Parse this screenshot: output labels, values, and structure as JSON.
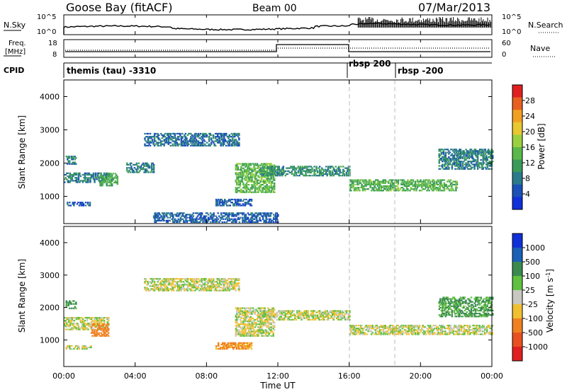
{
  "header": {
    "station": "Goose Bay (fitACF)",
    "beam": "Beam 00",
    "date": "07/Mar/2013"
  },
  "noise_panel": {
    "left_label": "N.Sky",
    "right_label": "N.Search",
    "left_ticks": [
      "10^5",
      "10^0"
    ],
    "right_ticks": [
      "10^5",
      "10^0"
    ]
  },
  "freq_panel": {
    "left_label_1": "Freq.",
    "left_label_2": "[MHz]",
    "right_label": "Nave",
    "left_ticks": [
      "18",
      "8"
    ],
    "right_ticks": [
      "60",
      "0"
    ]
  },
  "cpid_panel": {
    "label": "CPID",
    "modes": [
      {
        "name": "themis (tau) -3310",
        "start_hour": 0
      },
      {
        "name": "rbsp 200",
        "start_hour": 16
      },
      {
        "name": "rbsp -200",
        "start_hour": 18.7
      }
    ]
  },
  "x_axis": {
    "label": "Time UT",
    "ticks": [
      "00:00",
      "04:00",
      "08:00",
      "12:00",
      "16:00",
      "20:00",
      "00:00"
    ]
  },
  "colors": {
    "ground_scatter": "#c8c8c0",
    "power_scale": [
      "#1030d8",
      "#1a50b8",
      "#2a7a8a",
      "#3a9a5a",
      "#5ab84a",
      "#9ad040",
      "#e8c830",
      "#f0a020",
      "#e86020",
      "#e02020"
    ],
    "velocity_scale": [
      "#1030d8",
      "#1a60b8",
      "#3a8a50",
      "#60c040",
      "#c8c8c0",
      "#f0c030",
      "#f08020",
      "#e85020",
      "#e02020"
    ]
  },
  "chart_data": [
    {
      "type": "heatmap",
      "title": "Power",
      "xlabel": "",
      "ylabel": "Slant Range [km]",
      "x_range_hours": [
        0,
        24
      ],
      "ylim": [
        180,
        4500
      ],
      "yticks": [
        1000,
        2000,
        3000,
        4000
      ],
      "colorbar": {
        "label": "Power [dB]",
        "range": [
          0,
          32
        ],
        "ticks": [
          "4",
          "8",
          "12",
          "16",
          "20",
          "24",
          "28"
        ]
      },
      "echo_regions": [
        {
          "t": [
            0.1,
            0.7
          ],
          "r": [
            1950,
            2200
          ],
          "level": 8
        },
        {
          "t": [
            0.1,
            1.5
          ],
          "r": [
            700,
            800
          ],
          "level": 4
        },
        {
          "t": [
            0.0,
            2.5
          ],
          "r": [
            1400,
            1700
          ],
          "level": 8
        },
        {
          "t": [
            2.0,
            3.0
          ],
          "r": [
            1300,
            1700
          ],
          "level": 12
        },
        {
          "t": [
            3.5,
            5.0
          ],
          "r": [
            1700,
            2000
          ],
          "level": 8
        },
        {
          "t": [
            4.5,
            9.8
          ],
          "r": [
            2500,
            2900
          ],
          "level": 6
        },
        {
          "t": [
            9.6,
            11.8
          ],
          "r": [
            1100,
            2000
          ],
          "level": 14
        },
        {
          "t": [
            11.0,
            16.0
          ],
          "r": [
            1600,
            1900
          ],
          "level": 9
        },
        {
          "t": [
            8.5,
            10.5
          ],
          "r": [
            700,
            900
          ],
          "level": 5
        },
        {
          "t": [
            5.0,
            12.0
          ],
          "r": [
            200,
            500
          ],
          "level": 5
        },
        {
          "t": [
            16.0,
            22.0
          ],
          "r": [
            1150,
            1500
          ],
          "level": 13
        },
        {
          "t": [
            21.0,
            24.0
          ],
          "r": [
            1800,
            2400
          ],
          "level": 8
        }
      ]
    },
    {
      "type": "heatmap",
      "title": "Velocity",
      "xlabel": "Time UT",
      "ylabel": "Slant Range [km]",
      "x_range_hours": [
        0,
        24
      ],
      "ylim": [
        180,
        4500
      ],
      "yticks": [
        1000,
        2000,
        3000,
        4000
      ],
      "colorbar": {
        "label": "Velocity [m s-1]",
        "range": [
          -1200,
          1200
        ],
        "ticks": [
          "1000",
          "500",
          "100",
          "25",
          "-25",
          "-100",
          "-500",
          "-1000"
        ]
      },
      "echo_regions": [
        {
          "t": [
            0.1,
            0.7
          ],
          "r": [
            1950,
            2200
          ],
          "velocity": 150
        },
        {
          "t": [
            0.1,
            1.5
          ],
          "r": [
            700,
            800
          ],
          "velocity": 0
        },
        {
          "t": [
            0.0,
            2.5
          ],
          "r": [
            1300,
            1700
          ],
          "velocity": 0
        },
        {
          "t": [
            1.5,
            2.5
          ],
          "r": [
            1100,
            1500
          ],
          "velocity": -200
        },
        {
          "t": [
            4.5,
            9.8
          ],
          "r": [
            2500,
            2900
          ],
          "velocity": 0
        },
        {
          "t": [
            9.6,
            11.8
          ],
          "r": [
            1100,
            2000
          ],
          "velocity": 0
        },
        {
          "t": [
            8.5,
            10.5
          ],
          "r": [
            700,
            900
          ],
          "velocity": -150
        },
        {
          "t": [
            11.0,
            16.0
          ],
          "r": [
            1600,
            1900
          ],
          "velocity": 0
        },
        {
          "t": [
            16.0,
            24.0
          ],
          "r": [
            1150,
            1450
          ],
          "velocity": 0
        },
        {
          "t": [
            21.0,
            24.0
          ],
          "r": [
            1700,
            2300
          ],
          "velocity": 120
        }
      ]
    }
  ]
}
